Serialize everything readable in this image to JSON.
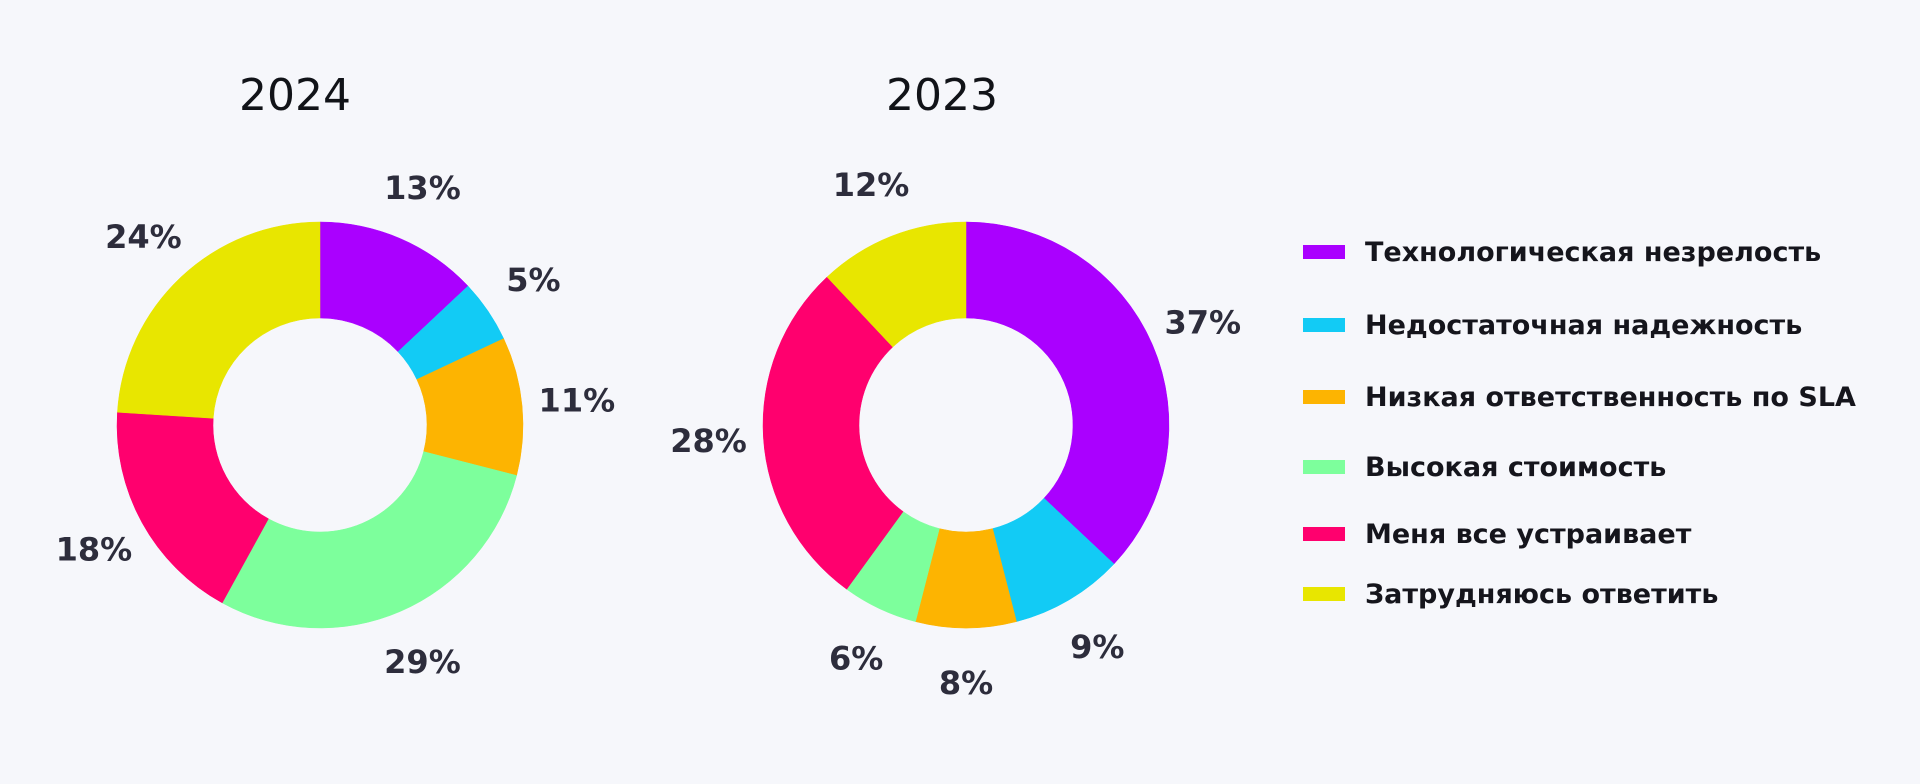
{
  "colors": {
    "background": "#f6f7fb",
    "label": "#2d2d3c",
    "purple": "#aa00ff",
    "cyan": "#12cbf5",
    "orange": "#fdb401",
    "green": "#7dff9c",
    "pink": "#ff006e",
    "yellow": "#e8e600"
  },
  "legend": [
    {
      "label": "Технологическая незрелость",
      "color": "#aa00ff"
    },
    {
      "label": "Недостаточная надежность",
      "color": "#12cbf5"
    },
    {
      "label": "Низкая ответственность по SLA",
      "color": "#fdb401"
    },
    {
      "label": "Высокая стоимость",
      "color": "#7dff9c"
    },
    {
      "label": "Меня все устраивает",
      "color": "#ff006e"
    },
    {
      "label": "Затрудняюсь ответить",
      "color": "#e8e600"
    }
  ],
  "chart_data": [
    {
      "type": "pie",
      "donut": true,
      "title": "2024",
      "categories": [
        "Технологическая незрелость",
        "Недостаточная надежность",
        "Низкая ответственность по SLA",
        "Высокая стоимость",
        "Меня все устраивает",
        "Затрудняюсь ответить"
      ],
      "values": [
        13,
        5,
        11,
        29,
        18,
        24
      ],
      "labels": [
        "13%",
        "5%",
        "11%",
        "29%",
        "18%",
        "24%"
      ],
      "colors": [
        "#aa00ff",
        "#12cbf5",
        "#fdb401",
        "#7dff9c",
        "#ff006e",
        "#e8e600"
      ],
      "legend": "right"
    },
    {
      "type": "pie",
      "donut": true,
      "title": "2023",
      "categories": [
        "Технологическая незрелость",
        "Недостаточная надежность",
        "Низкая ответственность по SLA",
        "Высокая стоимость",
        "Меня все устраивает",
        "Затрудняюсь ответить"
      ],
      "values": [
        37,
        9,
        8,
        6,
        28,
        12
      ],
      "labels": [
        "37%",
        "9%",
        "8%",
        "6%",
        "28%",
        "12%"
      ],
      "colors": [
        "#aa00ff",
        "#12cbf5",
        "#fdb401",
        "#7dff9c",
        "#ff006e",
        "#e8e600"
      ],
      "legend": "right"
    }
  ]
}
